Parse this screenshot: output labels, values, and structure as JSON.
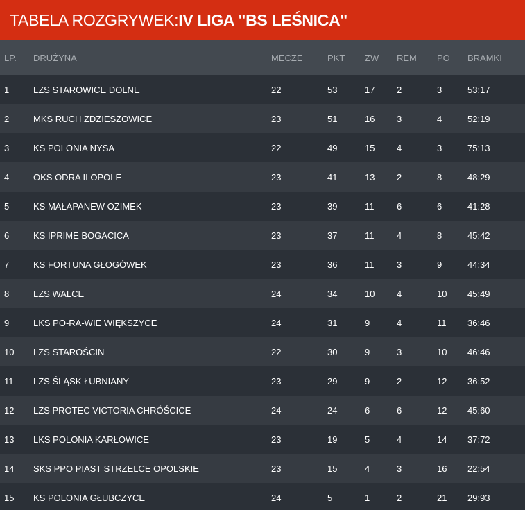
{
  "header": {
    "title_prefix": "TABELA ROZGRYWEK: ",
    "title_league": "IV LIGA \"BS LEŚNICA\""
  },
  "table": {
    "columns": {
      "lp": "LP.",
      "team": "DRUŻYNA",
      "mecze": "MECZE",
      "pkt": "PKT",
      "zw": "ZW",
      "rem": "REM",
      "po": "PO",
      "bramki": "BRAMKI"
    },
    "rows": [
      {
        "lp": "1",
        "team": "LZS STAROWICE DOLNE",
        "mecze": "22",
        "pkt": "53",
        "zw": "17",
        "rem": "2",
        "po": "3",
        "bramki": "53:17"
      },
      {
        "lp": "2",
        "team": "MKS RUCH ZDZIESZOWICE",
        "mecze": "23",
        "pkt": "51",
        "zw": "16",
        "rem": "3",
        "po": "4",
        "bramki": "52:19"
      },
      {
        "lp": "3",
        "team": "KS POLONIA NYSA",
        "mecze": "22",
        "pkt": "49",
        "zw": "15",
        "rem": "4",
        "po": "3",
        "bramki": "75:13"
      },
      {
        "lp": "4",
        "team": "OKS ODRA II OPOLE",
        "mecze": "23",
        "pkt": "41",
        "zw": "13",
        "rem": "2",
        "po": "8",
        "bramki": "48:29"
      },
      {
        "lp": "5",
        "team": "KS MAŁAPANEW OZIMEK",
        "mecze": "23",
        "pkt": "39",
        "zw": "11",
        "rem": "6",
        "po": "6",
        "bramki": "41:28"
      },
      {
        "lp": "6",
        "team": "KS IPRIME BOGACICA",
        "mecze": "23",
        "pkt": "37",
        "zw": "11",
        "rem": "4",
        "po": "8",
        "bramki": "45:42"
      },
      {
        "lp": "7",
        "team": "KS FORTUNA GŁOGÓWEK",
        "mecze": "23",
        "pkt": "36",
        "zw": "11",
        "rem": "3",
        "po": "9",
        "bramki": "44:34"
      },
      {
        "lp": "8",
        "team": "LZS WALCE",
        "mecze": "24",
        "pkt": "34",
        "zw": "10",
        "rem": "4",
        "po": "10",
        "bramki": "45:49"
      },
      {
        "lp": "9",
        "team": "LKS PO-RA-WIE WIĘKSZYCE",
        "mecze": "24",
        "pkt": "31",
        "zw": "9",
        "rem": "4",
        "po": "11",
        "bramki": "36:46"
      },
      {
        "lp": "10",
        "team": "LZS STAROŚCIN",
        "mecze": "22",
        "pkt": "30",
        "zw": "9",
        "rem": "3",
        "po": "10",
        "bramki": "46:46"
      },
      {
        "lp": "11",
        "team": "LZS ŚLĄSK ŁUBNIANY",
        "mecze": "23",
        "pkt": "29",
        "zw": "9",
        "rem": "2",
        "po": "12",
        "bramki": "36:52"
      },
      {
        "lp": "12",
        "team": "LZS PROTEC VICTORIA CHRÓŚCICE",
        "mecze": "24",
        "pkt": "24",
        "zw": "6",
        "rem": "6",
        "po": "12",
        "bramki": "45:60"
      },
      {
        "lp": "13",
        "team": "LKS POLONIA KARŁOWICE",
        "mecze": "23",
        "pkt": "19",
        "zw": "5",
        "rem": "4",
        "po": "14",
        "bramki": "37:72"
      },
      {
        "lp": "14",
        "team": "SKS PPO PIAST STRZELCE OPOLSKIE",
        "mecze": "23",
        "pkt": "15",
        "zw": "4",
        "rem": "3",
        "po": "16",
        "bramki": "22:54"
      },
      {
        "lp": "15",
        "team": "KS POLONIA GŁUBCZYCE",
        "mecze": "24",
        "pkt": "5",
        "zw": "1",
        "rem": "2",
        "po": "21",
        "bramki": "29:93"
      }
    ]
  },
  "colors": {
    "title_bar": "#d42e12",
    "header_row": "#434950",
    "row_odd": "#2b3037",
    "row_even": "#363b42",
    "header_text": "#a6abb0"
  }
}
